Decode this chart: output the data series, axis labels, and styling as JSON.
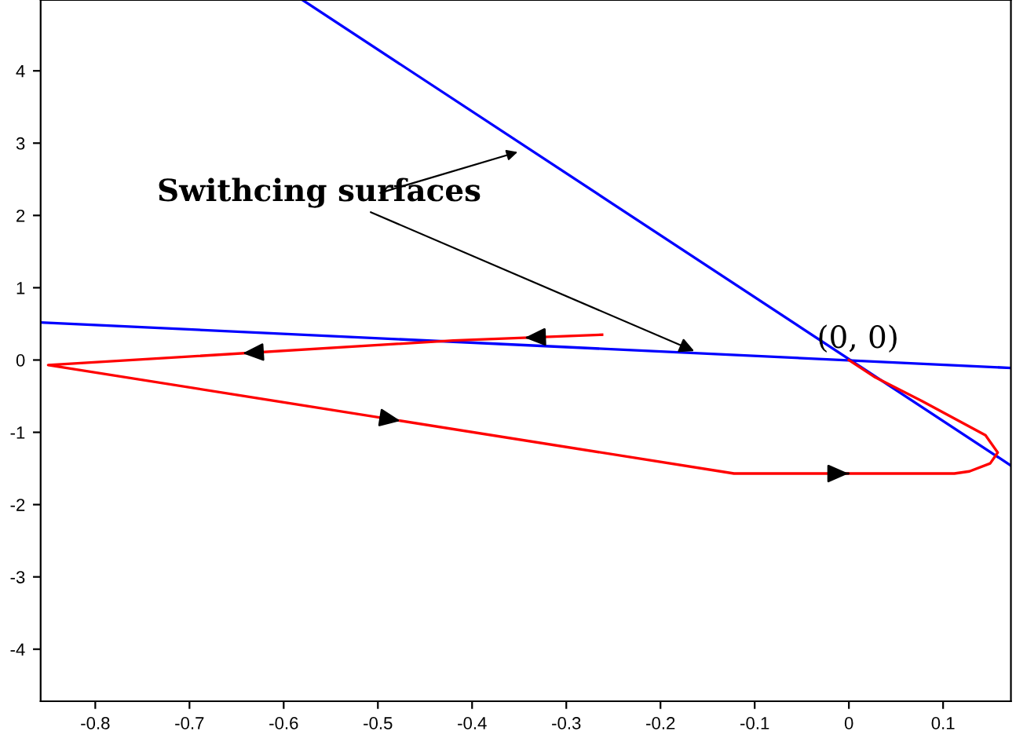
{
  "chart_data": {
    "type": "line",
    "xlim": [
      -0.858,
      0.172
    ],
    "ylim": [
      -4.72,
      4.98
    ],
    "xticks": [
      -0.8,
      -0.7,
      -0.6,
      -0.5,
      -0.4,
      -0.3,
      -0.2,
      -0.1,
      0,
      0.1
    ],
    "yticks": [
      -4,
      -3,
      -2,
      -1,
      0,
      1,
      2,
      3,
      4
    ],
    "series": [
      {
        "color": "#0000ff",
        "x": [
          -0.58,
          0.172
        ],
        "values": [
          4.98,
          -1.46
        ]
      },
      {
        "color": "#0000ff",
        "x": [
          -0.858,
          0.172
        ],
        "values": [
          0.52,
          -0.11
        ]
      },
      {
        "color": "#ff0000",
        "x": [
          -0.262,
          -0.42,
          -0.85,
          -0.122,
          0.112,
          0.128,
          0.15,
          0.158,
          0.145,
          0.078,
          0.028,
          0
        ],
        "values": [
          0.35,
          0.27,
          -0.07,
          -1.57,
          -1.57,
          -1.54,
          -1.43,
          -1.28,
          -1.04,
          -0.57,
          -0.24,
          0
        ]
      }
    ],
    "annotations": [
      {
        "text": "Swithcing surfaces",
        "x": -0.16,
        "y": 0.1
      },
      "(0, 0)"
    ],
    "grid": false,
    "legend": false
  }
}
